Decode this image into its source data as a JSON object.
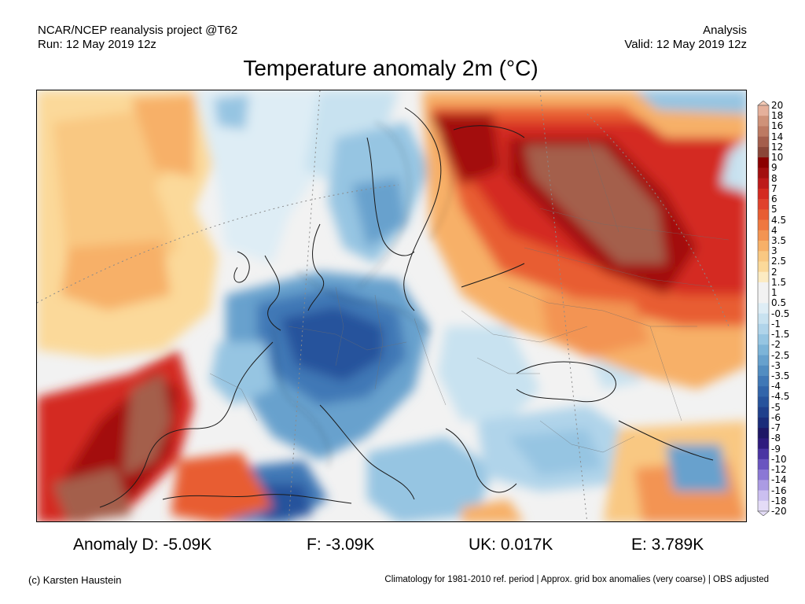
{
  "header": {
    "left_line1": "NCAR/NCEP reanalysis project @T62",
    "left_line2": "Run: 12 May 2019 12z",
    "right_line1": "Analysis",
    "right_line2": "Valid: 12 May 2019 12z"
  },
  "title": "Temperature anomaly 2m (°C)",
  "colorbar": {
    "labels": [
      "20",
      "18",
      "16",
      "14",
      "12",
      "10",
      "9",
      "8",
      "7",
      "6",
      "5",
      "4.5",
      "4",
      "3.5",
      "3",
      "2.5",
      "2",
      "1.5",
      "1",
      "0.5",
      "-0.5",
      "-1",
      "-1.5",
      "-2",
      "-2.5",
      "-3",
      "-3.5",
      "-4",
      "-4.5",
      "-5",
      "-6",
      "-7",
      "-8",
      "-9",
      "-10",
      "-12",
      "-14",
      "-16",
      "-18",
      "-20"
    ],
    "colors": [
      "#f3c9b5",
      "#e5b09b",
      "#cf9279",
      "#bd7a63",
      "#a45e4c",
      "#8a4638",
      "#8b0000",
      "#a30f0f",
      "#bd1a1a",
      "#d42a20",
      "#e0422c",
      "#e85d32",
      "#ef7840",
      "#f39452",
      "#f7b068",
      "#f9c882",
      "#fbd99a",
      "#fcebc2",
      "#f2f2f2",
      "#f2f2f2",
      "#deedf5",
      "#c8e2f0",
      "#b0d4ea",
      "#96c5e2",
      "#7db4d8",
      "#67a1cd",
      "#528dc1",
      "#4078b6",
      "#3265aa",
      "#27539c",
      "#1f408c",
      "#1a2c7a",
      "#1e1766",
      "#2e1b7e",
      "#4a34a3",
      "#6a55c0",
      "#8b78d5",
      "#ab9be3",
      "#cbbff0",
      "#e4dcf7"
    ]
  },
  "map": {
    "region": "Europe",
    "colors": {
      "ocean_warm": "#fbd99a",
      "land_cold": "#4078b6",
      "land_warm": "#d42a20",
      "hot_core": "#a45e4c",
      "border": "#6e6e6e"
    }
  },
  "stats": {
    "germany": "Anomaly D: -5.09K",
    "france": "F: -3.09K",
    "uk": "UK: 0.017K",
    "england": "E: 3.789K"
  },
  "footer": {
    "credit": "(c) Karsten Haustein",
    "note": "Climatology for 1981-2010 ref. period | Approx. grid box anomalies (very coarse) | OBS adjusted"
  }
}
